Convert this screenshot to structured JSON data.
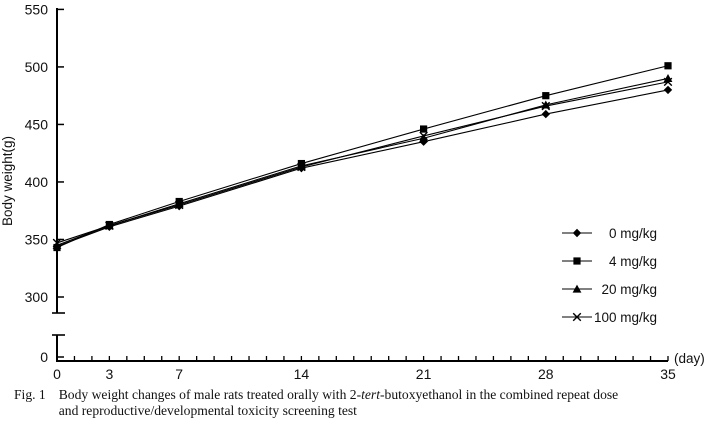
{
  "chart_data": {
    "type": "line",
    "title": "",
    "ylabel": "Body weight(g)",
    "x_unit_label": "(day)",
    "x": [
      0,
      3,
      7,
      14,
      21,
      28,
      35
    ],
    "x_tick_labels": [
      "0",
      "3",
      "7",
      "14",
      "21",
      "28",
      "35"
    ],
    "x_minor_tick_step": 1,
    "x_range": [
      0,
      35
    ],
    "y_ticks": [
      300,
      350,
      400,
      450,
      500,
      550
    ],
    "y_tick_labels": [
      "300",
      "350",
      "400",
      "450",
      "500",
      "550"
    ],
    "y_origin_label": "0",
    "y_axis_break": true,
    "ylim": [
      300,
      550
    ],
    "grid": false,
    "legend_position": "right-middle",
    "line_color": "#000000",
    "background": "#ffffff",
    "series": [
      {
        "name": "0 mg/kg",
        "marker": "diamond",
        "values": [
          344,
          361,
          379,
          412,
          435,
          459,
          480
        ]
      },
      {
        "name": "4 mg/kg",
        "marker": "square",
        "values": [
          343,
          363,
          383,
          416,
          446,
          475,
          501
        ]
      },
      {
        "name": "20 mg/kg",
        "marker": "triangle",
        "values": [
          345,
          362,
          381,
          414,
          438,
          467,
          490
        ]
      },
      {
        "name": "100 mg/kg",
        "marker": "x",
        "values": [
          347,
          362,
          380,
          413,
          440,
          466,
          487
        ]
      }
    ]
  },
  "caption": {
    "label": "Fig. 1",
    "line1_pre": "Body weight changes of male rats treated orally with 2-",
    "line1_italic": "tert",
    "line1_post": "-butoxyethanol in the combined repeat dose",
    "line2": "and reproductive/developmental toxicity screening test"
  }
}
